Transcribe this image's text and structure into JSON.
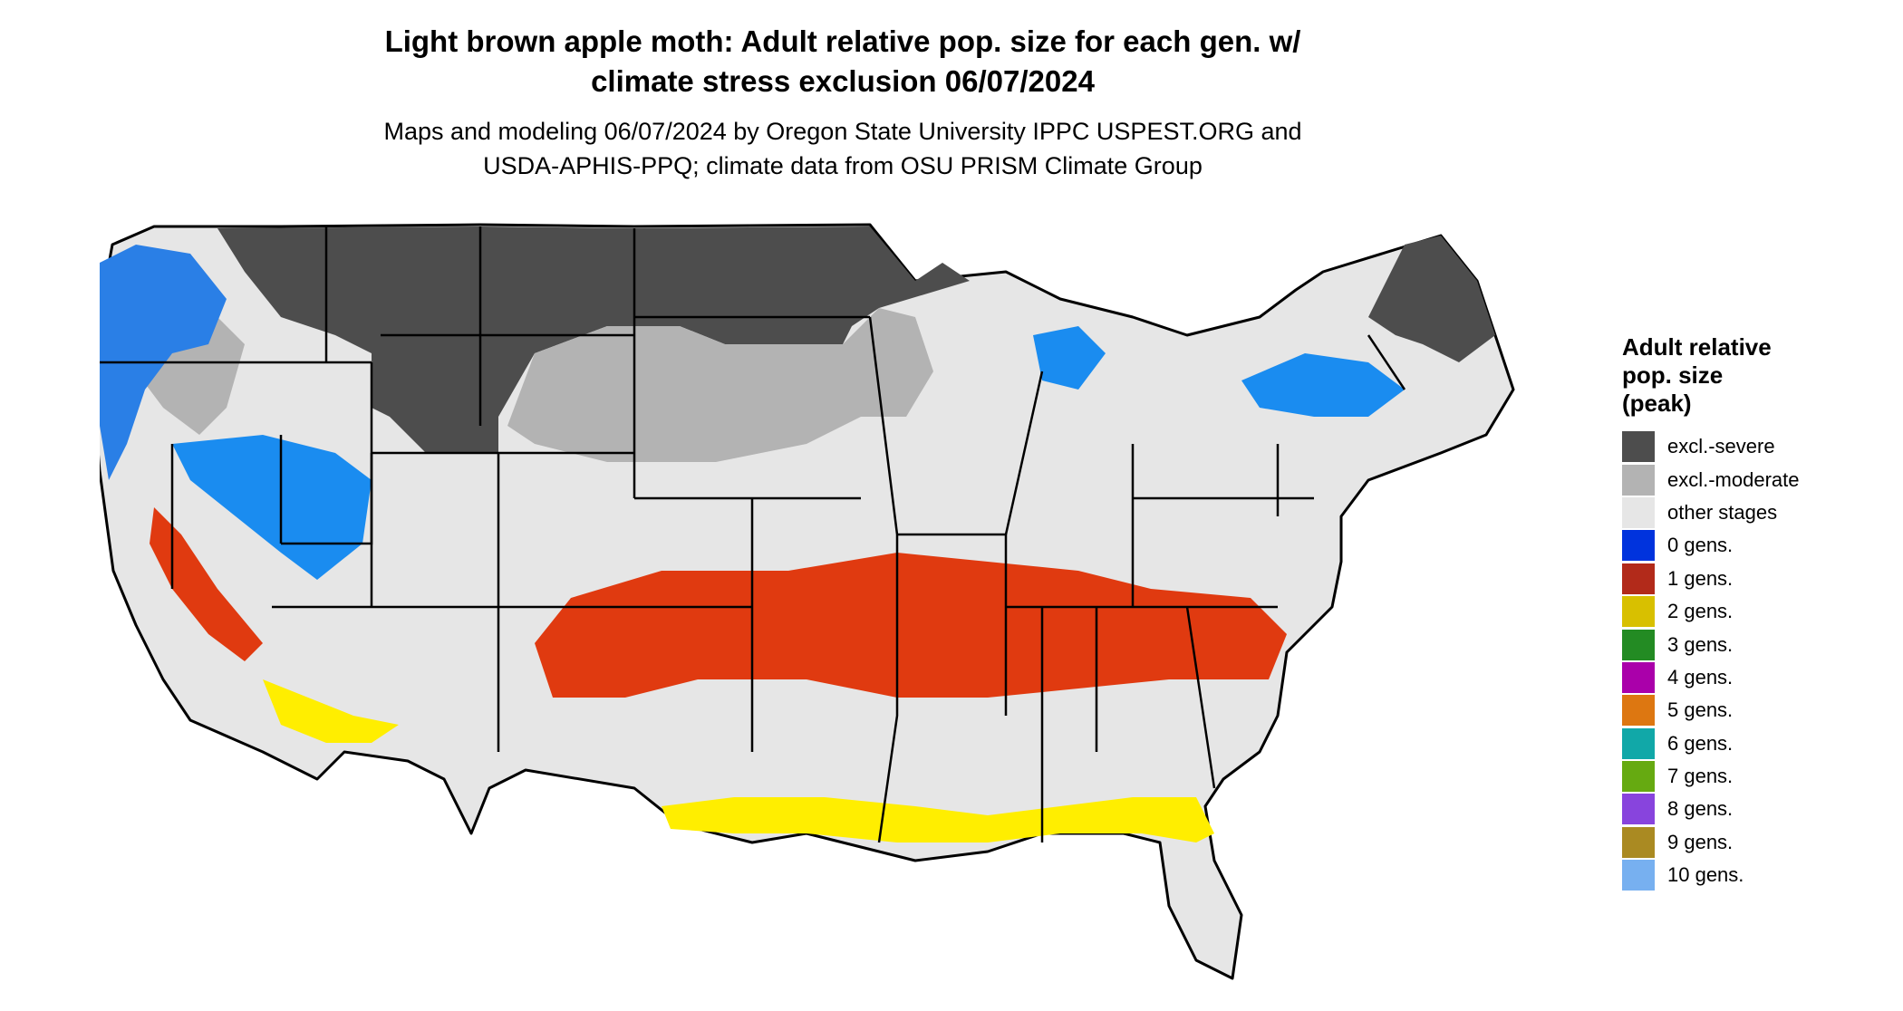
{
  "title": {
    "line1": "Light brown apple moth: Adult relative pop. size for each gen. w/",
    "line2": "climate stress exclusion 06/07/2024"
  },
  "subtitle": {
    "line1": "Maps and modeling 06/07/2024 by Oregon State University IPPC USPEST.ORG and",
    "line2": "USDA-APHIS-PPQ; climate data from OSU PRISM Climate Group"
  },
  "map": {
    "name": "Contiguous United States",
    "colors": {
      "background_land": "#e6e6e6",
      "boundary": "#000000"
    }
  },
  "legend": {
    "title": {
      "line1": "Adult relative",
      "line2": "pop. size",
      "line3": "(peak)"
    },
    "items": [
      {
        "label": "excl.-severe",
        "color": "#4d4d4d"
      },
      {
        "label": "excl.-moderate",
        "color": "#b3b3b3"
      },
      {
        "label": "other stages",
        "color": "#e6e6e6"
      },
      {
        "label": "0 gens.",
        "color": "#0033dd"
      },
      {
        "label": "1 gens.",
        "color": "#b22a1a"
      },
      {
        "label": "2 gens.",
        "color": "#d8c000"
      },
      {
        "label": "3 gens.",
        "color": "#238b23"
      },
      {
        "label": "4 gens.",
        "color": "#aa00aa"
      },
      {
        "label": "5 gens.",
        "color": "#dd7711"
      },
      {
        "label": "6 gens.",
        "color": "#11a8a8"
      },
      {
        "label": "7 gens.",
        "color": "#66aa11"
      },
      {
        "label": "8 gens.",
        "color": "#8844dd"
      },
      {
        "label": "9 gens.",
        "color": "#aa8a22"
      },
      {
        "label": "10 gens.",
        "color": "#77b0f0"
      }
    ]
  }
}
